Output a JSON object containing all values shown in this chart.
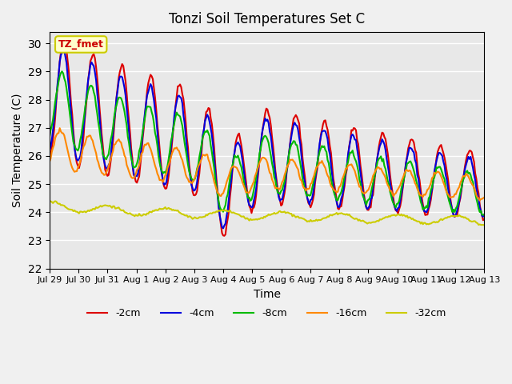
{
  "title": "Tonzi Soil Temperatures Set C",
  "xlabel": "Time",
  "ylabel": "Soil Temperature (C)",
  "ylim": [
    22.0,
    30.4
  ],
  "yticks": [
    22.0,
    23.0,
    24.0,
    25.0,
    26.0,
    27.0,
    28.0,
    29.0,
    30.0
  ],
  "xtick_labels": [
    "Jul 29",
    "Jul 30",
    "Jul 31",
    "Aug 1",
    "Aug 2",
    "Aug 3",
    "Aug 4",
    "Aug 5",
    "Aug 6",
    "Aug 7",
    "Aug 8",
    "Aug 9",
    "Aug 10",
    "Aug 11",
    "Aug 12",
    "Aug 13"
  ],
  "annotation_text": "TZ_fmet",
  "annotation_color": "#cc0000",
  "annotation_bg": "#ffffcc",
  "annotation_border": "#cccc00",
  "series_colors": [
    "#dd0000",
    "#0000dd",
    "#00bb00",
    "#ff8800",
    "#cccc00"
  ],
  "series_labels": [
    "-2cm",
    "-4cm",
    "-8cm",
    "-16cm",
    "-32cm"
  ],
  "bg_color": "#e8e8e8",
  "fig_bg_color": "#f0f0f0",
  "line_width": 1.5,
  "n_points": 384
}
